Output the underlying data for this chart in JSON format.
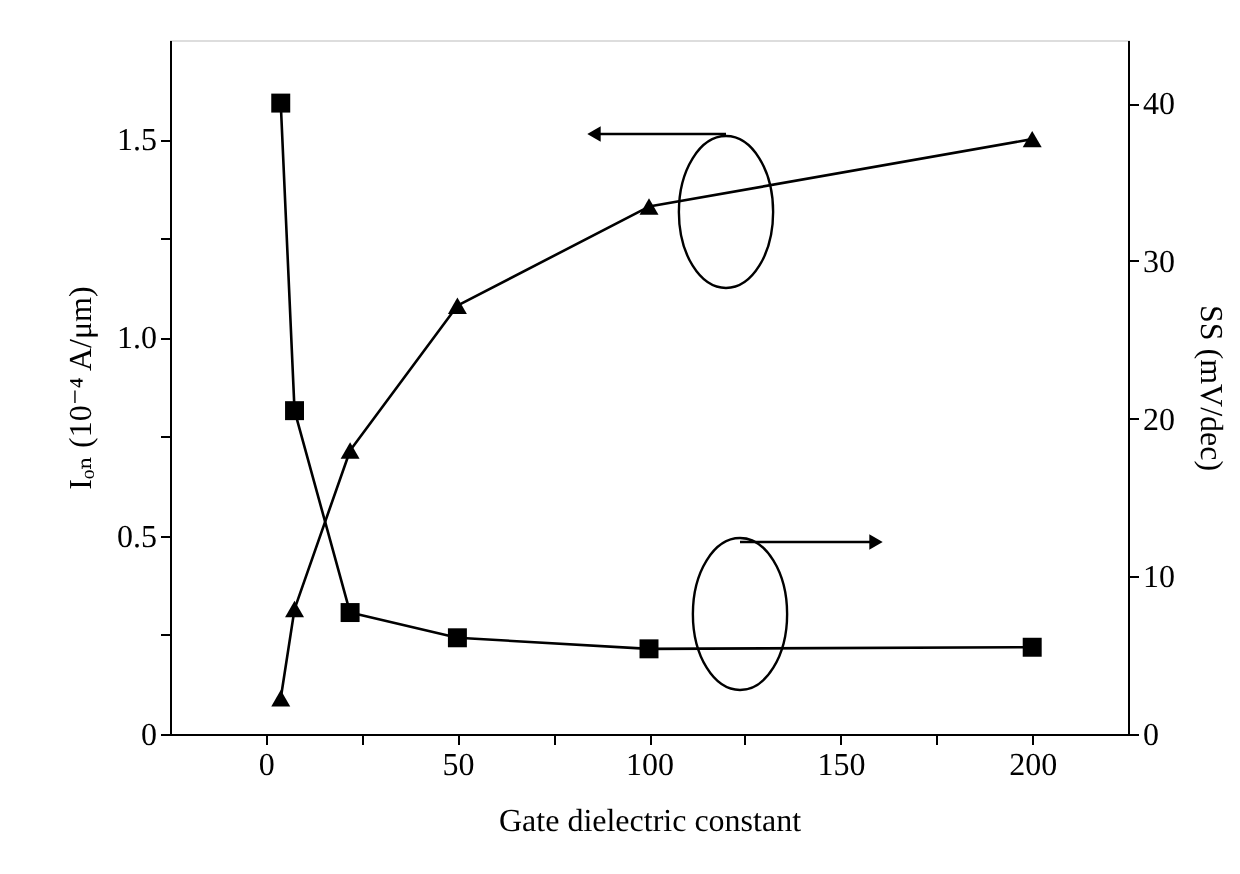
{
  "chart_data": {
    "type": "line",
    "xlabel": "Gate dielectric constant",
    "ylabel": "Iₒₙ (10⁻⁴ A/μm)",
    "y2label": "SS (mV/dec)",
    "x": [
      3.9,
      7.5,
      22,
      50,
      100,
      200
    ],
    "series": [
      {
        "color": "#000000",
        "marker": "triangle",
        "values": [
          0.09,
          0.315,
          0.715,
          1.08,
          1.33,
          1.5
        ]
      },
      {
        "color": "#000000",
        "marker": "square",
        "axis": "y2",
        "values": [
          40.0,
          20.5,
          7.7,
          6.1,
          5.4,
          5.5
        ]
      }
    ],
    "xlim": [
      -25,
      225
    ],
    "xticks": [
      0,
      {
        "value": 25,
        "label": null
      },
      50,
      {
        "value": 75,
        "label": null
      },
      100,
      {
        "value": 125,
        "label": null
      },
      150,
      {
        "value": 175,
        "label": null
      },
      200
    ],
    "ylim": [
      0,
      1.75
    ],
    "yticks": [
      0,
      {
        "value": 0.25,
        "label": null
      },
      {
        "value": 0.5,
        "label": "0.5"
      },
      {
        "value": 0.75,
        "label": null
      },
      {
        "value": 1,
        "label": "1.0"
      },
      {
        "value": 1.25,
        "label": null
      },
      {
        "value": 1.5,
        "label": "1.5"
      }
    ],
    "y2lim": [
      0,
      44
    ],
    "y2ticks": [
      0,
      10,
      20,
      30,
      40
    ],
    "grid": false,
    "line_style": "solid"
  }
}
